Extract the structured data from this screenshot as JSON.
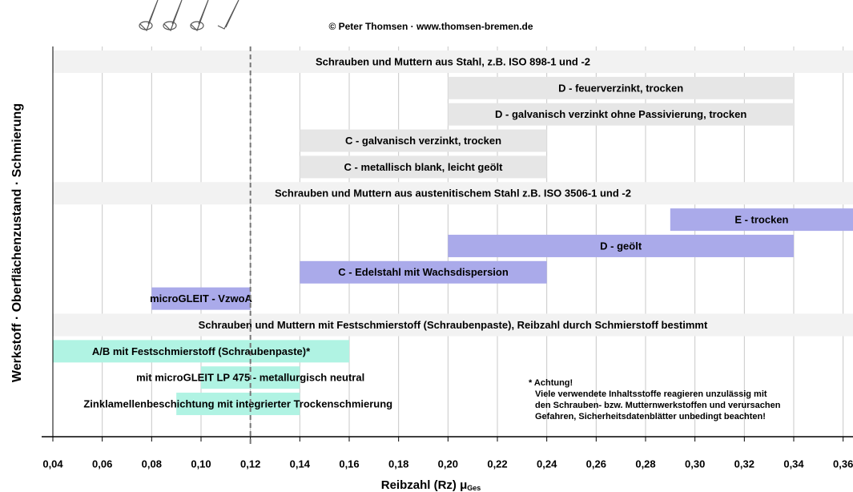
{
  "chart_data": {
    "type": "range-bar",
    "credit": "© Peter Thomsen · www.thomsen-bremen.de",
    "ylabel": "Werkstoff · Oberflächenzustand · Schmierung",
    "xlabel": {
      "text": "Reibzahl (Rz) μ",
      "subscript": "Ges"
    },
    "xlim": [
      0.04,
      0.364
    ],
    "xticks": [
      {
        "value": 0.04,
        "label": "0,04"
      },
      {
        "value": 0.06,
        "label": "0,06"
      },
      {
        "value": 0.08,
        "label": "0,08"
      },
      {
        "value": 0.1,
        "label": "0,10"
      },
      {
        "value": 0.12,
        "label": "0,12"
      },
      {
        "value": 0.14,
        "label": "0,14"
      },
      {
        "value": 0.16,
        "label": "0,16"
      },
      {
        "value": 0.18,
        "label": "0,18"
      },
      {
        "value": 0.2,
        "label": "0,20"
      },
      {
        "value": 0.22,
        "label": "0,22"
      },
      {
        "value": 0.24,
        "label": "0,24"
      },
      {
        "value": 0.26,
        "label": "0,26"
      },
      {
        "value": 0.28,
        "label": "0,28"
      },
      {
        "value": 0.3,
        "label": "0,30"
      },
      {
        "value": 0.32,
        "label": "0,32"
      },
      {
        "value": 0.34,
        "label": "0,34"
      },
      {
        "value": 0.36,
        "label": "0,36"
      }
    ],
    "grid": true,
    "reference_line": 0.12,
    "header_color": "#f2f2f2",
    "rows": [
      {
        "kind": "header",
        "label": "Schrauben und Muttern aus Stahl, z.B. ISO 898-1 und -2"
      },
      {
        "label": "D -  feuerverzinkt, trocken",
        "range": [
          0.2,
          0.34
        ],
        "color": "#e6e6e6"
      },
      {
        "label": "D -  galvanisch verzinkt ohne Passivierung, trocken",
        "range": [
          0.2,
          0.34
        ],
        "color": "#e6e6e6"
      },
      {
        "label": "C -  galvanisch verzinkt, trocken",
        "range": [
          0.14,
          0.24
        ],
        "color": "#e6e6e6"
      },
      {
        "label": "C -  metallisch blank, leicht geölt",
        "range": [
          0.14,
          0.24
        ],
        "color": "#e6e6e6"
      },
      {
        "kind": "header",
        "label": "Schrauben und Muttern aus austenitischem Stahl z.B. ISO 3506-1 und -2"
      },
      {
        "label": "E - trocken",
        "range": [
          0.29,
          0.364
        ],
        "color": "#aaaaea"
      },
      {
        "label": "D - geölt",
        "range": [
          0.2,
          0.34
        ],
        "color": "#aaaaea"
      },
      {
        "label": "C -  Edelstahl mit Wachsdispersion",
        "range": [
          0.14,
          0.24
        ],
        "color": "#aaaaea"
      },
      {
        "label": "microGLEIT - VzwoA",
        "range": [
          0.08,
          0.12
        ],
        "color": "#aaaaea"
      },
      {
        "kind": "header",
        "label": "Schrauben und Muttern mit Festschmierstoff (Schraubenpaste), Reibzahl durch Schmierstoff bestimmt"
      },
      {
        "label": "A/B mit Festschmierstoff (Schraubenpaste)*",
        "range": [
          0.04,
          0.16
        ],
        "color": "#b0f3e3"
      },
      {
        "label": "mit microGLEIT LP 475 - metallurgisch neutral",
        "range": [
          0.1,
          0.14
        ],
        "color": "#b0f3e3"
      },
      {
        "label": "Zinklamellenbeschichtung mit integrierter Trockenschmierung",
        "range": [
          0.09,
          0.14
        ],
        "color": "#b0f3e3"
      }
    ],
    "note": [
      "* Achtung!",
      "Viele verwendete Inhaltsstoffe reagieren unzulässig mit",
      "den Schrauben- bzw. Mutternwerkstoffen und verursachen",
      "Gefahren, Sicherheitsdatenblätter unbedingt beachten!"
    ]
  }
}
